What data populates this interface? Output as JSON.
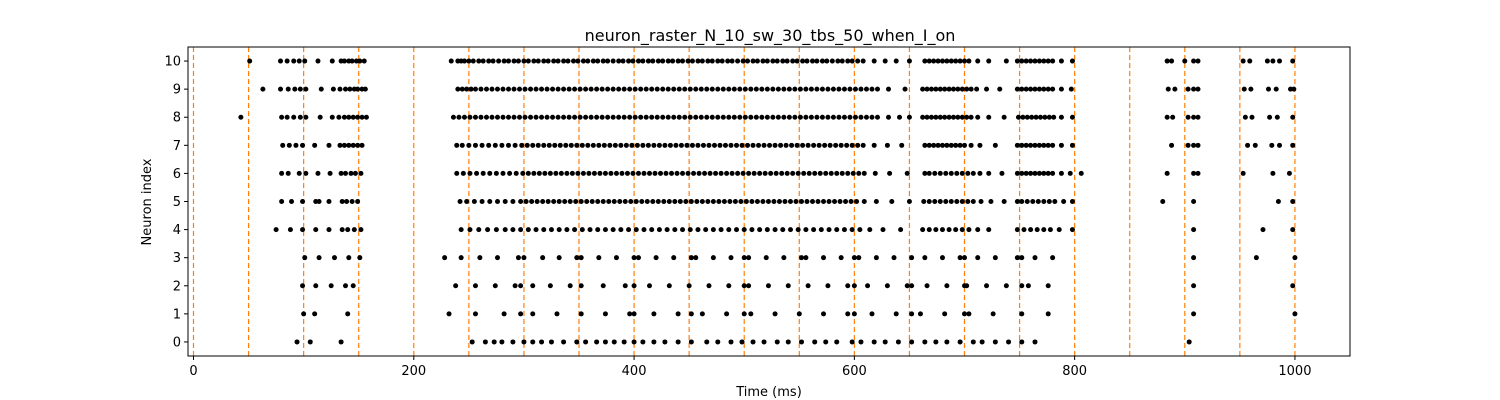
{
  "chart_data": {
    "type": "scatter",
    "title": "neuron_raster_N_10_sw_30_tbs_50_when_I_on",
    "xlabel": "Time (ms)",
    "ylabel": "Neuron index",
    "xlim": [
      -5,
      1050
    ],
    "ylim": [
      -0.5,
      10.5
    ],
    "xticks": [
      0,
      200,
      400,
      600,
      800,
      1000
    ],
    "yticks": [
      0,
      1,
      2,
      3,
      4,
      5,
      6,
      7,
      8,
      9,
      10
    ],
    "grid": false,
    "point_color": "#000000",
    "reference_line_color": "#ff7f0e",
    "reference_lines_x": [
      0,
      50,
      100,
      150,
      200,
      250,
      300,
      350,
      400,
      450,
      500,
      550,
      600,
      650,
      700,
      750,
      800,
      850,
      900,
      950,
      1000
    ],
    "spikes": [
      {
        "neuron": 10,
        "times": [
          51,
          79,
          85,
          91,
          96,
          101,
          113,
          126,
          134,
          137,
          141,
          144,
          148,
          151,
          155,
          234,
          240,
          243,
          246,
          250,
          254,
          259,
          263,
          268,
          272,
          277,
          282,
          286,
          291,
          295,
          300,
          304,
          309,
          313,
          318,
          322,
          327,
          331,
          336,
          340,
          345,
          349,
          354,
          358,
          363,
          367,
          372,
          376,
          381,
          386,
          390,
          395,
          399,
          404,
          408,
          413,
          417,
          422,
          426,
          431,
          435,
          440,
          444,
          449,
          453,
          458,
          462,
          467,
          471,
          476,
          480,
          485,
          489,
          494,
          499,
          503,
          508,
          512,
          517,
          521,
          526,
          530,
          535,
          539,
          544,
          548,
          553,
          557,
          562,
          566,
          571,
          575,
          580,
          585,
          589,
          594,
          598,
          603,
          608,
          618,
          628,
          638,
          650,
          664,
          668,
          672,
          676,
          680,
          684,
          688,
          692,
          696,
          700,
          704,
          712,
          722,
          738,
          748,
          752,
          756,
          760,
          764,
          768,
          772,
          776,
          780,
          788,
          798,
          884,
          888,
          900,
          908,
          912,
          953,
          959,
          975,
          980,
          986,
          998
        ]
      },
      {
        "neuron": 9,
        "times": [
          63,
          79,
          86,
          92,
          97,
          102,
          116,
          127,
          133,
          138,
          142,
          146,
          149,
          153,
          156,
          240,
          244,
          248,
          252,
          256,
          261,
          266,
          271,
          276,
          281,
          286,
          291,
          296,
          301,
          306,
          311,
          316,
          321,
          326,
          331,
          336,
          341,
          346,
          351,
          356,
          361,
          366,
          371,
          376,
          381,
          386,
          391,
          396,
          401,
          406,
          411,
          416,
          421,
          426,
          431,
          436,
          441,
          446,
          451,
          456,
          461,
          466,
          471,
          476,
          481,
          486,
          491,
          496,
          501,
          506,
          511,
          516,
          521,
          526,
          531,
          536,
          541,
          546,
          551,
          556,
          561,
          566,
          571,
          576,
          581,
          586,
          591,
          596,
          601,
          606,
          611,
          616,
          621,
          631,
          646,
          662,
          666,
          670,
          674,
          678,
          682,
          686,
          690,
          694,
          698,
          702,
          706,
          711,
          720,
          732,
          748,
          752,
          756,
          760,
          764,
          768,
          772,
          776,
          780,
          788,
          797,
          885,
          891,
          903,
          908,
          912,
          954,
          960,
          976,
          983,
          996,
          999
        ]
      },
      {
        "neuron": 8,
        "times": [
          43,
          80,
          85,
          91,
          97,
          102,
          115,
          126,
          132,
          137,
          141,
          145,
          149,
          153,
          157,
          236,
          241,
          246,
          251,
          256,
          261,
          266,
          271,
          276,
          281,
          286,
          291,
          296,
          301,
          306,
          311,
          316,
          321,
          326,
          331,
          336,
          341,
          346,
          351,
          356,
          361,
          366,
          371,
          376,
          381,
          386,
          391,
          396,
          401,
          406,
          411,
          416,
          421,
          426,
          431,
          436,
          441,
          446,
          451,
          456,
          461,
          466,
          471,
          476,
          481,
          486,
          491,
          496,
          501,
          506,
          511,
          516,
          521,
          526,
          531,
          536,
          541,
          546,
          551,
          556,
          561,
          566,
          571,
          576,
          581,
          586,
          591,
          596,
          601,
          606,
          611,
          616,
          621,
          631,
          641,
          650,
          662,
          666,
          670,
          674,
          678,
          682,
          686,
          690,
          694,
          698,
          702,
          706,
          712,
          722,
          736,
          749,
          753,
          757,
          761,
          765,
          769,
          773,
          777,
          781,
          788,
          798,
          884,
          889,
          903,
          908,
          912,
          955,
          961,
          977,
          984,
          998
        ]
      },
      {
        "neuron": 7,
        "times": [
          81,
          87,
          93,
          99,
          110,
          123,
          133,
          137,
          141,
          145,
          149,
          153,
          239,
          244,
          250,
          256,
          262,
          268,
          274,
          280,
          286,
          292,
          298,
          303,
          308,
          313,
          318,
          323,
          328,
          333,
          338,
          343,
          348,
          353,
          358,
          363,
          368,
          373,
          378,
          383,
          388,
          393,
          398,
          403,
          408,
          413,
          418,
          423,
          428,
          433,
          438,
          443,
          448,
          453,
          458,
          463,
          468,
          473,
          478,
          483,
          488,
          493,
          498,
          503,
          508,
          513,
          518,
          523,
          528,
          533,
          538,
          543,
          548,
          553,
          558,
          563,
          568,
          573,
          578,
          583,
          588,
          593,
          598,
          603,
          608,
          618,
          630,
          643,
          664,
          668,
          672,
          676,
          680,
          684,
          688,
          692,
          696,
          700,
          706,
          714,
          728,
          748,
          752,
          756,
          760,
          764,
          768,
          772,
          776,
          780,
          788,
          798,
          888,
          903,
          908,
          912,
          957,
          964,
          979,
          986,
          998
        ]
      },
      {
        "neuron": 6,
        "times": [
          80,
          86,
          96,
          102,
          113,
          124,
          134,
          138,
          143,
          147,
          152,
          239,
          245,
          251,
          257,
          263,
          269,
          275,
          281,
          287,
          293,
          299,
          304,
          309,
          314,
          319,
          324,
          329,
          334,
          339,
          344,
          349,
          354,
          359,
          364,
          369,
          374,
          379,
          384,
          389,
          394,
          399,
          404,
          409,
          414,
          419,
          424,
          429,
          434,
          439,
          444,
          449,
          454,
          459,
          464,
          469,
          474,
          479,
          484,
          489,
          494,
          499,
          504,
          509,
          514,
          519,
          524,
          529,
          534,
          539,
          544,
          549,
          554,
          559,
          564,
          569,
          574,
          579,
          584,
          589,
          594,
          599,
          604,
          609,
          619,
          632,
          648,
          664,
          668,
          673,
          678,
          683,
          688,
          693,
          698,
          703,
          708,
          714,
          722,
          734,
          748,
          752,
          756,
          760,
          764,
          768,
          772,
          776,
          780,
          788,
          796,
          806,
          884,
          908,
          912,
          953,
          980,
          995
        ]
      },
      {
        "neuron": 5,
        "times": [
          80,
          89,
          99,
          111,
          114,
          123,
          135,
          139,
          144,
          149,
          242,
          248,
          255,
          262,
          269,
          276,
          283,
          290,
          297,
          302,
          307,
          312,
          317,
          322,
          327,
          332,
          337,
          342,
          347,
          352,
          357,
          362,
          367,
          372,
          377,
          382,
          387,
          392,
          397,
          402,
          407,
          412,
          417,
          422,
          427,
          432,
          437,
          442,
          447,
          452,
          457,
          462,
          467,
          472,
          477,
          482,
          487,
          492,
          497,
          502,
          507,
          512,
          517,
          522,
          527,
          532,
          537,
          542,
          547,
          552,
          557,
          562,
          567,
          572,
          577,
          582,
          587,
          592,
          597,
          602,
          609,
          620,
          634,
          650,
          663,
          668,
          673,
          678,
          683,
          688,
          693,
          698,
          703,
          708,
          715,
          724,
          736,
          748,
          752,
          757,
          762,
          767,
          772,
          777,
          782,
          790,
          798,
          880,
          908,
          985,
          998
        ]
      },
      {
        "neuron": 4,
        "times": [
          75,
          88,
          99,
          111,
          123,
          135,
          140,
          146,
          152,
          243,
          251,
          259,
          267,
          275,
          283,
          290,
          297,
          304,
          311,
          318,
          325,
          332,
          339,
          346,
          353,
          360,
          367,
          374,
          381,
          388,
          395,
          402,
          409,
          416,
          423,
          430,
          437,
          444,
          451,
          458,
          465,
          472,
          479,
          486,
          493,
          500,
          507,
          514,
          521,
          528,
          535,
          542,
          549,
          556,
          563,
          570,
          577,
          584,
          591,
          598,
          605,
          614,
          626,
          642,
          662,
          668,
          674,
          680,
          686,
          692,
          698,
          704,
          712,
          722,
          748,
          754,
          760,
          766,
          772,
          778,
          786,
          798,
          908,
          971,
          998
        ]
      },
      {
        "neuron": 3,
        "times": [
          101,
          114,
          128,
          141,
          151,
          228,
          243,
          260,
          276,
          295,
          300,
          317,
          332,
          348,
          352,
          368,
          384,
          400,
          404,
          420,
          436,
          452,
          456,
          472,
          488,
          500,
          504,
          520,
          536,
          552,
          556,
          572,
          588,
          600,
          604,
          620,
          636,
          652,
          664,
          680,
          696,
          700,
          712,
          728,
          748,
          752,
          764,
          780,
          908,
          965,
          1000
        ]
      },
      {
        "neuron": 2,
        "times": [
          99,
          111,
          125,
          138,
          145,
          238,
          256,
          274,
          292,
          297,
          308,
          324,
          342,
          352,
          372,
          392,
          400,
          414,
          432,
          450,
          468,
          486,
          500,
          504,
          522,
          540,
          558,
          576,
          594,
          600,
          612,
          630,
          648,
          652,
          666,
          684,
          700,
          702,
          720,
          738,
          752,
          758,
          776,
          908,
          998
        ]
      },
      {
        "neuron": 1,
        "times": [
          100,
          110,
          140,
          232,
          256,
          282,
          297,
          308,
          330,
          352,
          374,
          396,
          400,
          418,
          440,
          452,
          462,
          484,
          500,
          506,
          528,
          550,
          572,
          594,
          600,
          616,
          638,
          652,
          660,
          682,
          700,
          704,
          726,
          752,
          776,
          908,
          1000
        ]
      },
      {
        "neuron": 0,
        "times": [
          94,
          106,
          134,
          253,
          265,
          273,
          280,
          290,
          300,
          308,
          316,
          325,
          336,
          348,
          356,
          366,
          374,
          382,
          391,
          400,
          408,
          418,
          428,
          440,
          452,
          466,
          476,
          488,
          498,
          508,
          518,
          530,
          540,
          552,
          564,
          574,
          584,
          598,
          606,
          618,
          628,
          640,
          652,
          664,
          674,
          684,
          696,
          708,
          716,
          728,
          740,
          752,
          764,
          904
        ]
      }
    ]
  }
}
